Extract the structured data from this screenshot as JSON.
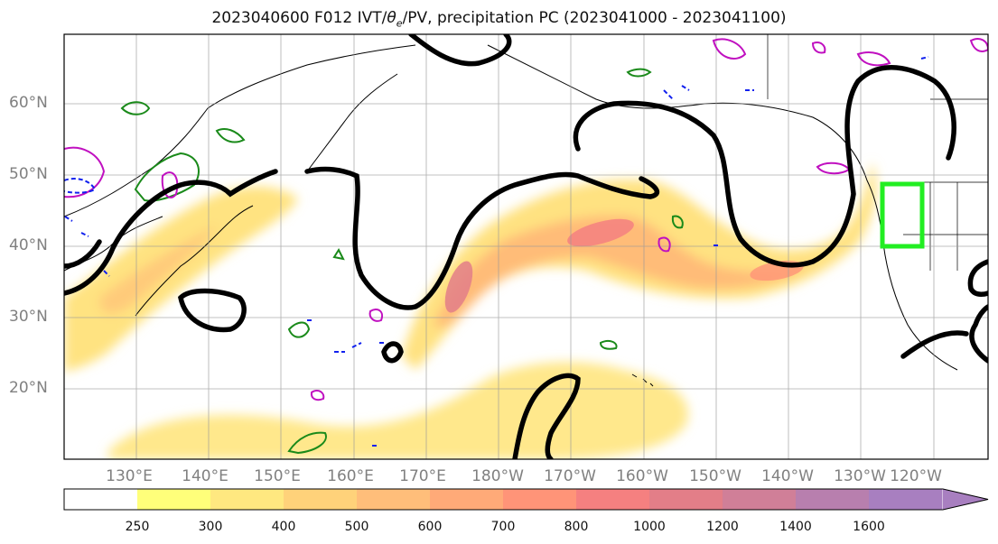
{
  "title_main": "2023040600 F012 IVT/",
  "title_theta": "θ",
  "title_sub": "e",
  "title_rest": "/PV, precipitation PC (2023041000 - 2023041100)",
  "lat_labels": [
    "60°N",
    "50°N",
    "40°N",
    "30°N",
    "20°N"
  ],
  "lon_labels": [
    "130°E",
    "140°E",
    "150°E",
    "160°E",
    "170°E",
    "180°W",
    "170°W",
    "160°W",
    "150°W",
    "140°W",
    "130°W",
    "120°W"
  ],
  "colorbar": {
    "ticks": [
      "250",
      "300",
      "400",
      "500",
      "600",
      "700",
      "800",
      "1000",
      "1200",
      "1400",
      "1600"
    ],
    "colors": [
      "#ffff7a",
      "#ffe880",
      "#ffd27a",
      "#ffbe7a",
      "#ffaa78",
      "#ff9478",
      "#f58080",
      "#e37e88",
      "#d07f98",
      "#b87fae",
      "#a87fc0"
    ]
  },
  "colors": {
    "box": "#22ee22",
    "ivt_contour": "#000000",
    "pv_green": "#1a8a1a",
    "pv_magenta": "#c010c0",
    "pv_blue": "#1020ee"
  }
}
